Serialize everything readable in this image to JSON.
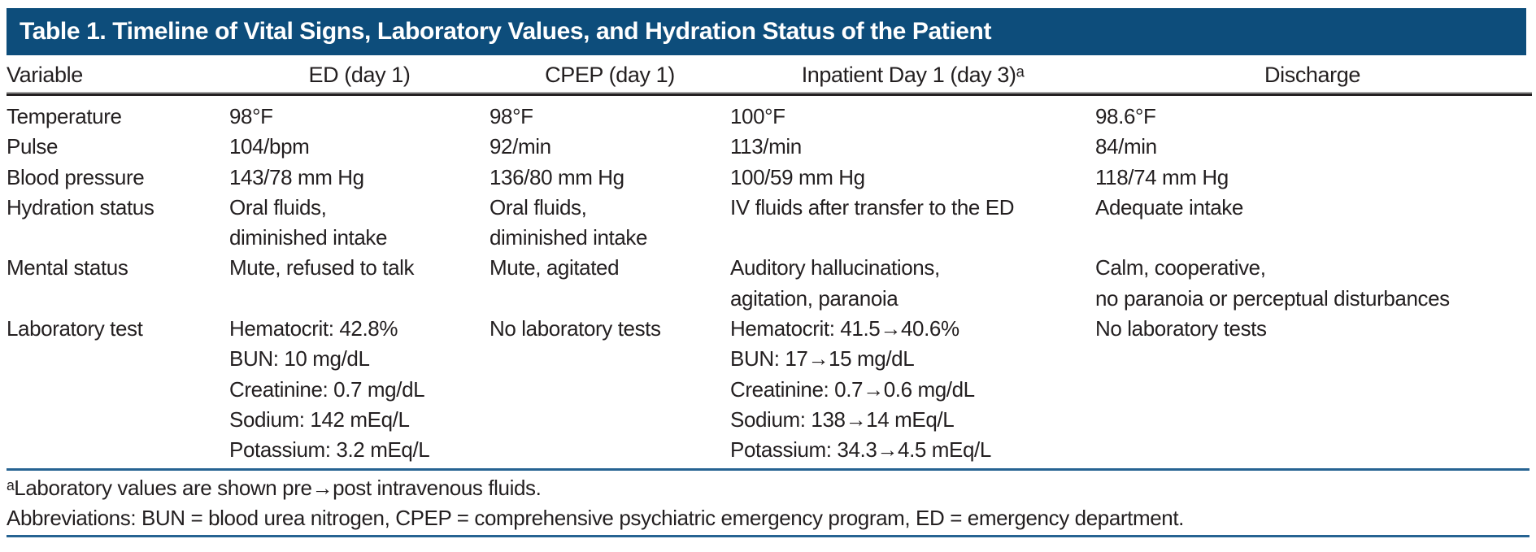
{
  "colors": {
    "header_bg": "#0d4d7b",
    "rule_blue": "#266392",
    "rule_dark": "#232021",
    "text": "#231f20"
  },
  "table": {
    "title": "Table 1. Timeline of Vital Signs, Laboratory Values, and Hydration Status of the Patient",
    "columns": [
      "Variable",
      "ED (day 1)",
      "CPEP (day 1)",
      "Inpatient Day 1 (day 3)ᵃ",
      "Discharge"
    ],
    "rows": [
      {
        "cells": [
          [
            "Temperature"
          ],
          [
            "98°F"
          ],
          [
            "98°F"
          ],
          [
            "100°F"
          ],
          [
            "98.6°F"
          ]
        ]
      },
      {
        "cells": [
          [
            "Pulse"
          ],
          [
            "104/bpm"
          ],
          [
            "92/min"
          ],
          [
            "113/min"
          ],
          [
            "84/min"
          ]
        ]
      },
      {
        "cells": [
          [
            "Blood pressure"
          ],
          [
            "143/78 mm Hg"
          ],
          [
            "136/80 mm Hg"
          ],
          [
            "100/59 mm Hg"
          ],
          [
            "118/74 mm Hg"
          ]
        ]
      },
      {
        "cells": [
          [
            "Hydration status"
          ],
          [
            "Oral fluids,",
            "diminished intake"
          ],
          [
            "Oral fluids,",
            "diminished intake"
          ],
          [
            "IV fluids after transfer to the ED"
          ],
          [
            "Adequate intake"
          ]
        ]
      },
      {
        "cells": [
          [
            "Mental status"
          ],
          [
            "Mute, refused to talk"
          ],
          [
            "Mute, agitated"
          ],
          [
            "Auditory hallucinations,",
            "agitation, paranoia"
          ],
          [
            "Calm, cooperative,",
            "no paranoia or perceptual disturbances"
          ]
        ]
      },
      {
        "cells": [
          [
            "Laboratory test"
          ],
          [
            "Hematocrit: 42.8%",
            "BUN: 10 mg/dL",
            "Creatinine: 0.7 mg/dL",
            "Sodium: 142 mEq/L",
            "Potassium: 3.2 mEq/L"
          ],
          [
            "No laboratory tests"
          ],
          [
            "Hematocrit: 41.5→40.6%",
            "BUN: 17→15 mg/dL",
            "Creatinine: 0.7→0.6 mg/dL",
            "Sodium: 138→14 mEq/L",
            "Potassium: 34.3→4.5 mEq/L"
          ],
          [
            "No laboratory tests"
          ]
        ]
      }
    ],
    "footnotes": [
      "ᵃLaboratory values are shown pre→post intravenous fluids.",
      "Abbreviations: BUN = blood urea nitrogen, CPEP = comprehensive psychiatric emergency program, ED = emergency department."
    ]
  }
}
